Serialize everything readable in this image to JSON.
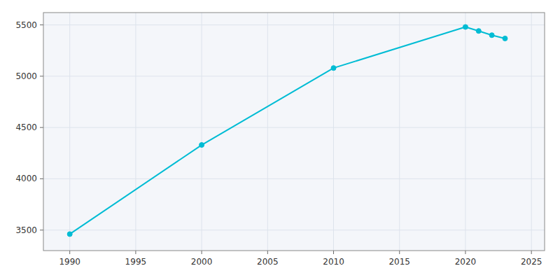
{
  "chart_data": {
    "type": "line",
    "x": [
      1990,
      2000,
      2010,
      2020,
      2021,
      2022,
      2023
    ],
    "values": [
      3461,
      4330,
      5080,
      5480,
      5441,
      5400,
      5368
    ],
    "color": "#00bcd4",
    "marker": "circle",
    "xlim": [
      1988,
      2026
    ],
    "ylim": [
      3300,
      5620
    ],
    "xticks": [
      1990,
      1995,
      2000,
      2005,
      2010,
      2015,
      2020,
      2025
    ],
    "yticks": [
      3500,
      4000,
      4500,
      5000,
      5500
    ],
    "grid": true
  }
}
